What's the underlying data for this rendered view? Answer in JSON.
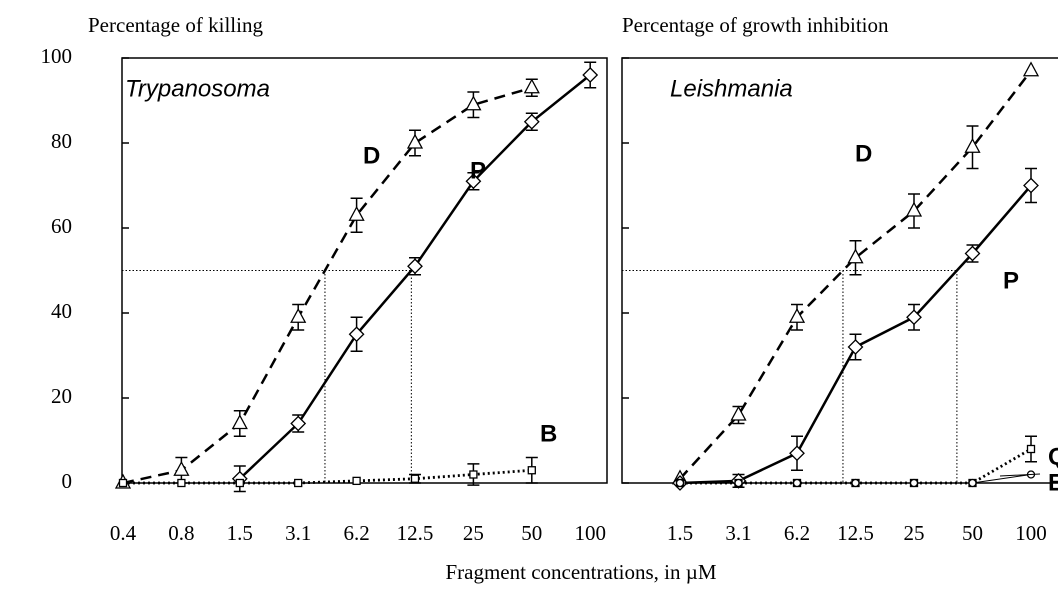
{
  "xlabel": "Fragment concentrations, in µM",
  "chart_data": [
    {
      "type": "line",
      "ylabel": "Percentage of killing",
      "title": "Trypanosoma",
      "categories": [
        "0.4",
        "0.8",
        "1.5",
        "3.1",
        "6.2",
        "12.5",
        "25",
        "50",
        "100"
      ],
      "ylim": [
        0,
        100
      ],
      "yticks": [
        0,
        20,
        40,
        60,
        80,
        100
      ],
      "show_tick_labels": true,
      "reference_value": 50,
      "reference_series": [
        "D",
        "P"
      ],
      "series": [
        {
          "name": "D",
          "color": "#000000",
          "marker": "triangle",
          "dash": "dashed",
          "values": [
            0,
            3,
            14,
            39,
            63,
            80,
            89,
            93,
            null
          ],
          "errors": [
            null,
            3,
            3,
            3,
            4,
            3,
            3,
            2,
            null
          ]
        },
        {
          "name": "P",
          "color": "#000000",
          "marker": "diamond",
          "dash": "solid",
          "values": [
            null,
            null,
            1,
            14,
            35,
            51,
            71,
            85,
            96
          ],
          "errors": [
            null,
            null,
            3,
            2,
            4,
            2,
            2,
            2,
            3
          ]
        },
        {
          "name": "B",
          "color": "#000000",
          "marker": "square",
          "dash": "dotted",
          "values": [
            0,
            0,
            0,
            0,
            0.5,
            1,
            2,
            3,
            null
          ],
          "errors": [
            null,
            null,
            null,
            null,
            null,
            1,
            2.5,
            3,
            null
          ]
        }
      ]
    },
    {
      "type": "line",
      "ylabel": "Percentage of growth inhibition",
      "title": "Leishmania",
      "categories": [
        "1.5",
        "3.1",
        "6.2",
        "12.5",
        "25",
        "50",
        "100"
      ],
      "ylim": [
        0,
        100
      ],
      "yticks": [
        0,
        20,
        40,
        60,
        80,
        100
      ],
      "show_tick_labels": false,
      "reference_value": 50,
      "reference_series": [
        "D",
        "P"
      ],
      "series": [
        {
          "name": "D",
          "color": "#000000",
          "marker": "triangle",
          "dash": "dashed",
          "values": [
            1,
            16,
            39,
            53,
            64,
            79,
            97
          ],
          "errors": [
            null,
            2,
            3,
            4,
            4,
            5,
            null
          ]
        },
        {
          "name": "P",
          "color": "#000000",
          "marker": "diamond",
          "dash": "solid",
          "values": [
            0,
            0.5,
            7,
            32,
            39,
            54,
            70
          ],
          "errors": [
            null,
            1.5,
            4,
            3,
            3,
            2,
            4
          ]
        },
        {
          "name": "Q",
          "color": "#000000",
          "marker": "square",
          "dash": "dotted",
          "values": [
            0,
            0,
            0,
            0,
            0,
            0,
            8
          ],
          "errors": [
            null,
            null,
            null,
            null,
            null,
            null,
            3
          ]
        },
        {
          "name": "E",
          "color": "#000000",
          "marker": "circle",
          "dash": "thin",
          "values": [
            0,
            0,
            0,
            0,
            0,
            0,
            2
          ],
          "errors": [
            null,
            null,
            null,
            null,
            null,
            null,
            null
          ]
        }
      ]
    }
  ]
}
